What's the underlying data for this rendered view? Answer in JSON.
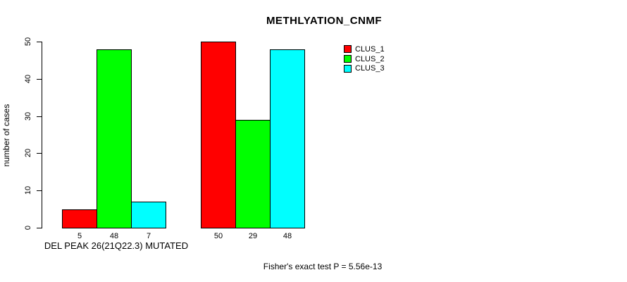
{
  "title": "METHLYATION_CNMF",
  "chart_data": {
    "type": "bar",
    "title": "METHLYATION_CNMF",
    "ylabel": "number of cases",
    "xlabel": "DEL PEAK 26(21Q22.3) MUTATED",
    "annotation": "Fisher's exact test P = 5.56e-13",
    "ylim": [
      0,
      50
    ],
    "yticks": [
      0,
      10,
      20,
      30,
      40,
      50
    ],
    "grid": false,
    "legend_position": "top-right",
    "num_groups": 2,
    "series": [
      {
        "name": "CLUS_1",
        "color": "#ff0000",
        "values": [
          5,
          50
        ]
      },
      {
        "name": "CLUS_2",
        "color": "#00ff00",
        "values": [
          48,
          29
        ]
      },
      {
        "name": "CLUS_3",
        "color": "#00ffff",
        "values": [
          7,
          48
        ]
      }
    ],
    "bar_labels": [
      [
        5,
        48,
        7
      ],
      [
        50,
        29,
        48
      ]
    ]
  }
}
